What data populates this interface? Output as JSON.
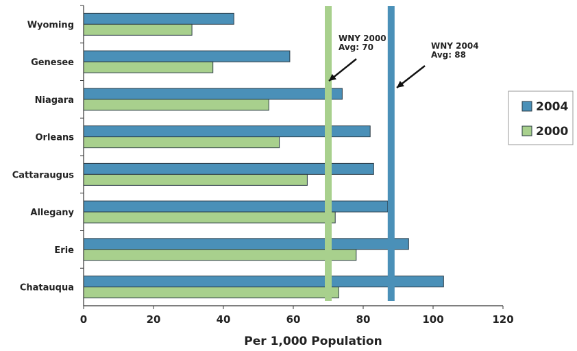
{
  "chart_data": {
    "type": "bar",
    "orientation": "horizontal",
    "categories": [
      "Wyoming",
      "Genesee",
      "Niagara",
      "Orleans",
      "Cattaraugus",
      "Allegany",
      "Erie",
      "Chatauqua"
    ],
    "series": [
      {
        "name": "2004",
        "color": "#4a90b8",
        "values": [
          43,
          59,
          74,
          82,
          83,
          87,
          93,
          103
        ]
      },
      {
        "name": "2000",
        "color": "#a8d08d",
        "values": [
          31,
          37,
          53,
          56,
          64,
          72,
          78,
          73
        ]
      }
    ],
    "xlabel": "Per 1,000 Population",
    "xlim": [
      0,
      120
    ],
    "xticks": [
      0,
      20,
      40,
      60,
      80,
      100,
      120
    ],
    "legend_position": "right",
    "reference_lines": [
      {
        "series": "2000",
        "value": 70,
        "label_line1": "WNY 2000",
        "label_line2": "Avg: 70",
        "color": "#a8d08d"
      },
      {
        "series": "2004",
        "value": 88,
        "label_line1": "WNY 2004",
        "label_line2": "Avg: 88",
        "color": "#4a90b8"
      }
    ]
  }
}
